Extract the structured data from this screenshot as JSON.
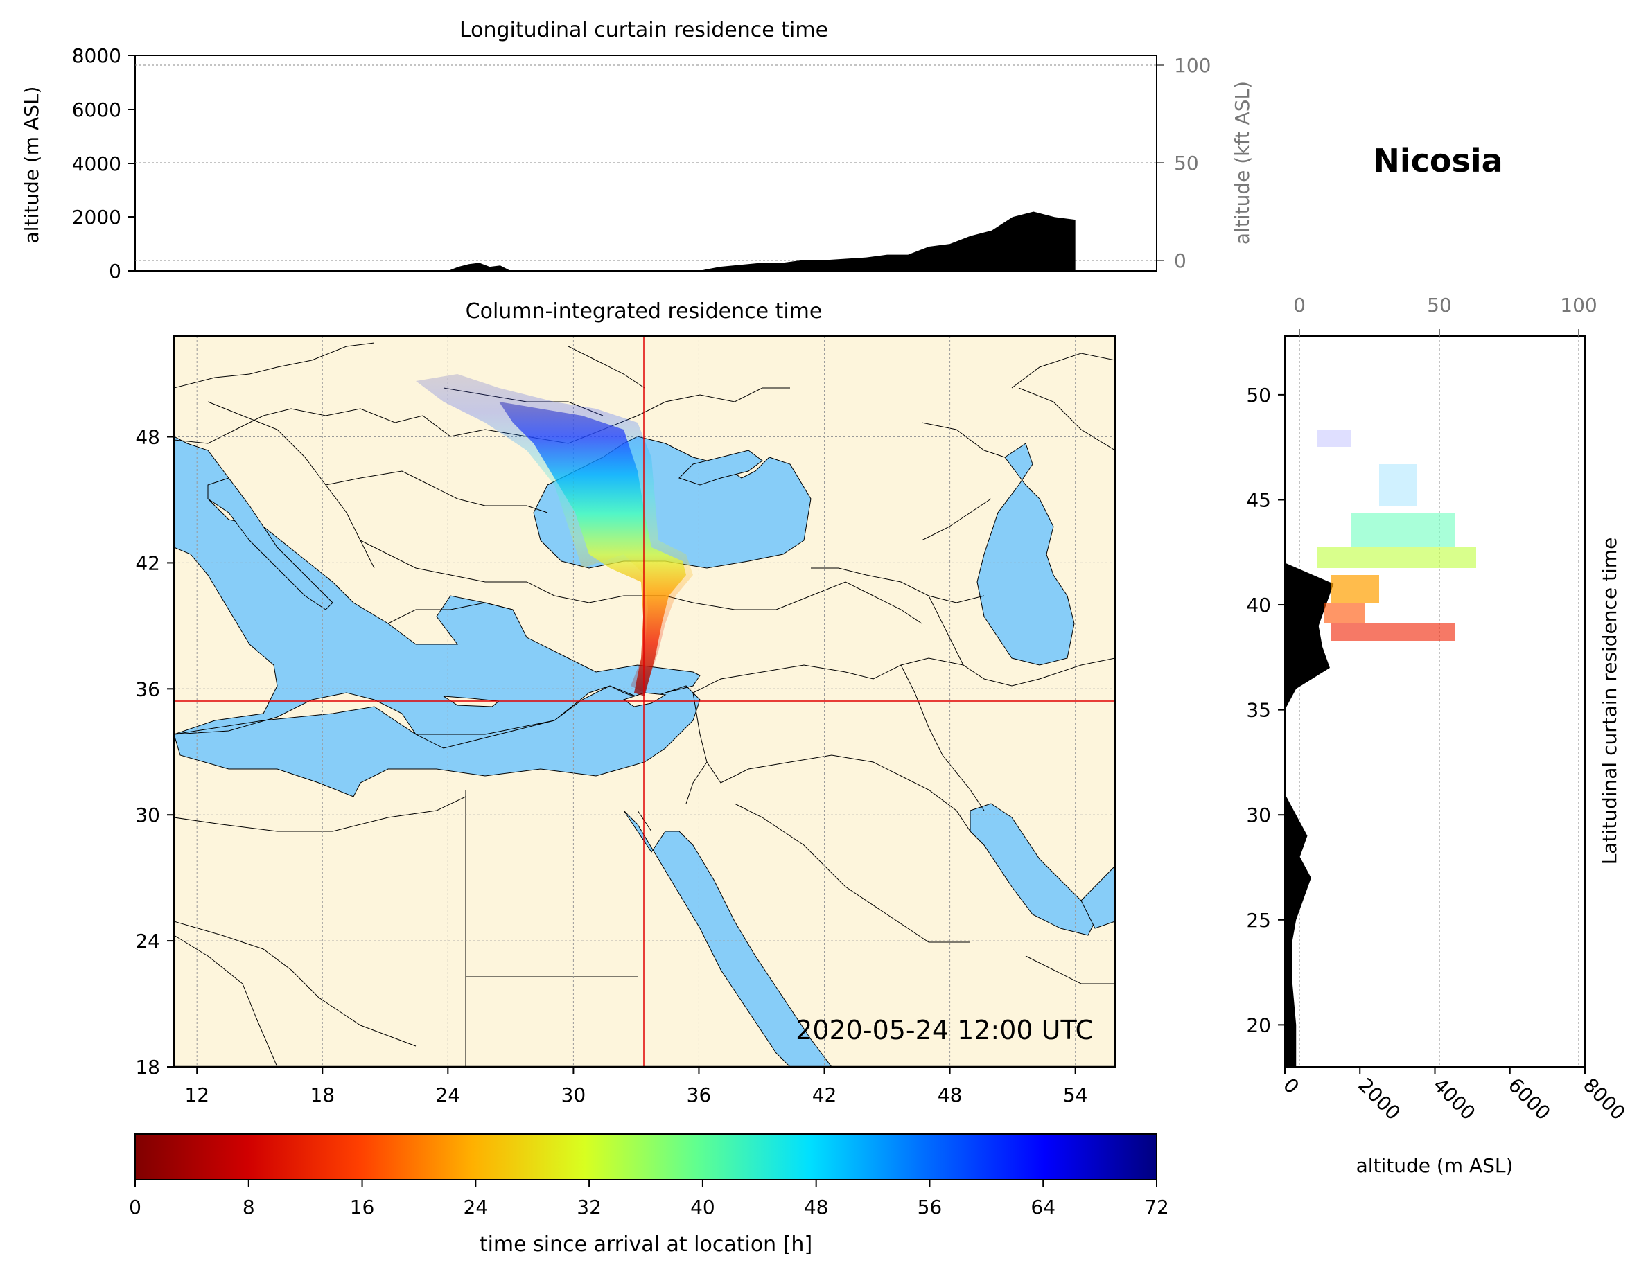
{
  "station": {
    "name": "Nicosia",
    "lon": 33.4,
    "lat": 35.2
  },
  "top_panel": {
    "title": "Longitudinal curtain residence time",
    "ylabel_left": "altitude (m ASL)",
    "ylabel_right": "altitude (kft ASL)",
    "yticks_left": [
      "0",
      "2000",
      "4000",
      "6000",
      "8000"
    ],
    "yticks_right": [
      "0",
      "50",
      "100"
    ]
  },
  "map_panel": {
    "title": "Column-integrated residence time",
    "timestamp": "2020-05-24 12:00 UTC",
    "xticks": [
      "12",
      "18",
      "24",
      "30",
      "36",
      "42",
      "48",
      "54"
    ],
    "yticks": [
      "18",
      "24",
      "30",
      "36",
      "42",
      "48"
    ],
    "extent": {
      "lon": [
        10.9,
        55.9
      ],
      "lat": [
        18,
        52.8
      ]
    },
    "colors": {
      "land": "#fdf5dc",
      "sea": "#87cdf8",
      "border": "#000000",
      "crosshair": "#e00000"
    }
  },
  "right_panel": {
    "ylabel": "Latitudinal curtain residence time",
    "xlabel": "altitude (m ASL)",
    "xticks_bottom": [
      "0",
      "2000",
      "4000",
      "6000",
      "8000"
    ],
    "xticks_top": [
      "0",
      "50",
      "100"
    ],
    "yticks": [
      "20",
      "25",
      "30",
      "35",
      "40",
      "45",
      "50"
    ]
  },
  "colorbar": {
    "label": "time since arrival at location [h]",
    "ticks": [
      "0",
      "8",
      "16",
      "24",
      "32",
      "40",
      "48",
      "56",
      "64",
      "72"
    ],
    "colormap": "jet_r"
  },
  "chart_data": [
    {
      "type": "area",
      "title": "Longitudinal curtain residence time",
      "ylabel": "altitude (m ASL)",
      "ylim": [
        0,
        8000
      ],
      "series": [
        {
          "x": [
            24,
            24.5,
            25,
            25.5,
            26,
            26.5,
            27,
            29,
            36,
            37,
            39,
            40,
            41,
            42,
            44,
            45,
            46,
            47,
            48,
            49,
            50,
            51,
            52,
            53,
            54
          ],
          "values": [
            0,
            150,
            250,
            300,
            150,
            200,
            0,
            0,
            0,
            150,
            300,
            300,
            400,
            400,
            500,
            600,
            600,
            900,
            1000,
            1300,
            1500,
            2000,
            2200,
            2000,
            1900
          ]
        }
      ]
    },
    {
      "type": "area",
      "title": "Latitudinal curtain residence time",
      "xlabel": "altitude (m ASL)",
      "xlim": [
        0,
        8000
      ],
      "series": [
        {
          "lat": [
            18,
            20,
            22,
            24,
            25,
            26,
            27,
            28,
            29,
            30,
            31,
            35,
            36,
            37,
            38,
            39,
            40,
            41,
            42
          ],
          "values": [
            300,
            300,
            200,
            200,
            300,
            500,
            700,
            400,
            600,
            300,
            0,
            0,
            300,
            1200,
            1000,
            900,
            1100,
            1300,
            0
          ]
        }
      ]
    }
  ]
}
